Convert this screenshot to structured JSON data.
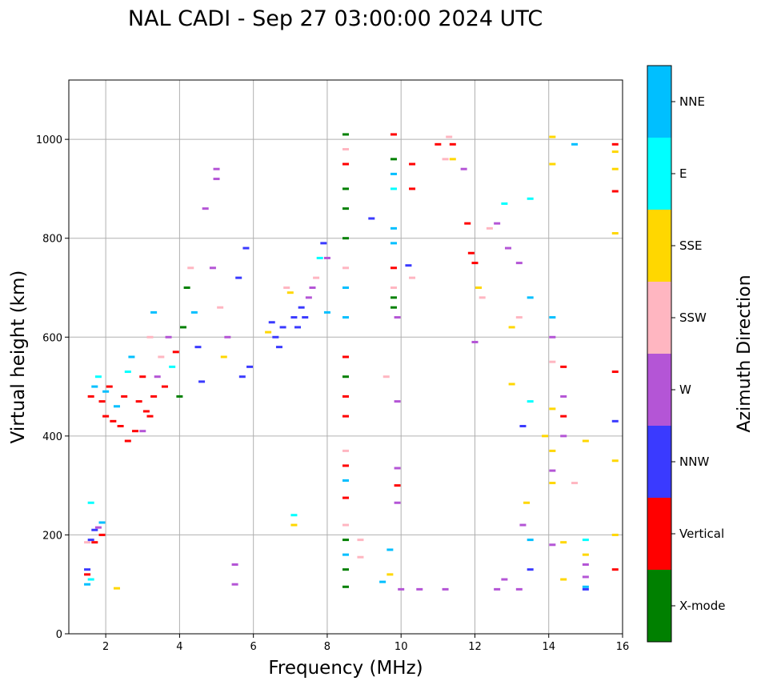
{
  "chart_data": {
    "type": "scatter",
    "title": "NAL CADI - Sep 27 03:00:00 2024 UTC",
    "xlabel": "Frequency (MHz)",
    "ylabel": "Virtual height (km)",
    "xlim": [
      1.0,
      16.0
    ],
    "ylim": [
      0,
      1120
    ],
    "x_ticks": [
      2,
      4,
      6,
      8,
      10,
      12,
      14,
      16
    ],
    "y_ticks": [
      0,
      200,
      400,
      600,
      800,
      1000
    ],
    "grid": true,
    "colorbar": {
      "title": "Azimuth Direction",
      "categories": [
        {
          "name": "X-mode",
          "color": "#008000"
        },
        {
          "name": "Vertical",
          "color": "#ff0000"
        },
        {
          "name": "NNW",
          "color": "#3a3aff"
        },
        {
          "name": "W",
          "color": "#b455d6"
        },
        {
          "name": "SSW",
          "color": "#ffb6c1"
        },
        {
          "name": "SSE",
          "color": "#ffd700"
        },
        {
          "name": "E",
          "color": "#00ffff"
        },
        {
          "name": "NNE",
          "color": "#00bfff"
        }
      ]
    },
    "points": [
      [
        1.5,
        130,
        "NNW"
      ],
      [
        1.5,
        120,
        "Vertical"
      ],
      [
        1.5,
        100,
        "NNE"
      ],
      [
        1.6,
        110,
        "E"
      ],
      [
        1.5,
        185,
        "SSW"
      ],
      [
        1.6,
        190,
        "NNW"
      ],
      [
        1.7,
        185,
        "Vertical"
      ],
      [
        1.7,
        210,
        "NNW"
      ],
      [
        1.8,
        215,
        "W"
      ],
      [
        1.9,
        225,
        "NNE"
      ],
      [
        1.9,
        200,
        "Vertical"
      ],
      [
        1.6,
        265,
        "E"
      ],
      [
        2.3,
        92,
        "SSE"
      ],
      [
        1.6,
        480,
        "Vertical"
      ],
      [
        1.7,
        500,
        "NNE"
      ],
      [
        1.8,
        520,
        "E"
      ],
      [
        1.9,
        470,
        "Vertical"
      ],
      [
        2.0,
        440,
        "Vertical"
      ],
      [
        2.0,
        490,
        "NNE"
      ],
      [
        2.1,
        500,
        "Vertical"
      ],
      [
        2.2,
        430,
        "Vertical"
      ],
      [
        2.3,
        460,
        "NNE"
      ],
      [
        2.4,
        420,
        "Vertical"
      ],
      [
        2.5,
        480,
        "Vertical"
      ],
      [
        2.6,
        390,
        "Vertical"
      ],
      [
        2.6,
        530,
        "E"
      ],
      [
        2.7,
        560,
        "NNE"
      ],
      [
        2.8,
        410,
        "Vertical"
      ],
      [
        2.9,
        470,
        "Vertical"
      ],
      [
        3.0,
        520,
        "Vertical"
      ],
      [
        3.0,
        410,
        "W"
      ],
      [
        3.1,
        450,
        "Vertical"
      ],
      [
        3.2,
        440,
        "Vertical"
      ],
      [
        3.2,
        600,
        "SSW"
      ],
      [
        3.3,
        480,
        "Vertical"
      ],
      [
        3.3,
        650,
        "NNE"
      ],
      [
        3.4,
        520,
        "W"
      ],
      [
        3.5,
        560,
        "SSW"
      ],
      [
        3.6,
        500,
        "Vertical"
      ],
      [
        3.7,
        600,
        "W"
      ],
      [
        3.8,
        540,
        "E"
      ],
      [
        3.9,
        570,
        "Vertical"
      ],
      [
        4.0,
        480,
        "X-mode"
      ],
      [
        4.1,
        620,
        "X-mode"
      ],
      [
        4.2,
        700,
        "X-mode"
      ],
      [
        4.3,
        740,
        "SSW"
      ],
      [
        4.4,
        650,
        "NNE"
      ],
      [
        4.5,
        580,
        "NNW"
      ],
      [
        4.6,
        510,
        "NNW"
      ],
      [
        4.7,
        860,
        "W"
      ],
      [
        4.9,
        740,
        "W"
      ],
      [
        5.0,
        940,
        "W"
      ],
      [
        5.0,
        920,
        "W"
      ],
      [
        5.1,
        660,
        "SSW"
      ],
      [
        5.2,
        560,
        "SSE"
      ],
      [
        5.3,
        600,
        "W"
      ],
      [
        5.5,
        140,
        "W"
      ],
      [
        5.5,
        100,
        "W"
      ],
      [
        5.6,
        720,
        "NNW"
      ],
      [
        5.7,
        520,
        "NNW"
      ],
      [
        5.8,
        780,
        "NNW"
      ],
      [
        5.9,
        540,
        "NNW"
      ],
      [
        6.4,
        610,
        "SSE"
      ],
      [
        6.5,
        630,
        "NNW"
      ],
      [
        6.6,
        600,
        "NNW"
      ],
      [
        6.7,
        580,
        "NNW"
      ],
      [
        6.8,
        620,
        "NNW"
      ],
      [
        6.9,
        700,
        "SSW"
      ],
      [
        7.0,
        690,
        "SSE"
      ],
      [
        7.1,
        640,
        "NNW"
      ],
      [
        7.2,
        620,
        "NNW"
      ],
      [
        7.3,
        660,
        "NNW"
      ],
      [
        7.4,
        640,
        "NNW"
      ],
      [
        7.5,
        680,
        "W"
      ],
      [
        7.6,
        700,
        "W"
      ],
      [
        7.7,
        720,
        "SSW"
      ],
      [
        7.8,
        760,
        "E"
      ],
      [
        7.9,
        790,
        "NNW"
      ],
      [
        8.0,
        760,
        "W"
      ],
      [
        8.0,
        650,
        "NNE"
      ],
      [
        7.1,
        240,
        "E"
      ],
      [
        7.1,
        220,
        "SSE"
      ],
      [
        8.5,
        1010,
        "X-mode"
      ],
      [
        8.5,
        980,
        "SSW"
      ],
      [
        8.5,
        950,
        "Vertical"
      ],
      [
        8.5,
        900,
        "X-mode"
      ],
      [
        8.5,
        860,
        "X-mode"
      ],
      [
        8.5,
        800,
        "X-mode"
      ],
      [
        8.5,
        740,
        "SSW"
      ],
      [
        8.5,
        700,
        "NNE"
      ],
      [
        8.5,
        640,
        "NNE"
      ],
      [
        8.5,
        560,
        "Vertical"
      ],
      [
        8.5,
        520,
        "X-mode"
      ],
      [
        8.5,
        480,
        "Vertical"
      ],
      [
        8.5,
        440,
        "Vertical"
      ],
      [
        8.5,
        370,
        "SSW"
      ],
      [
        8.5,
        340,
        "Vertical"
      ],
      [
        8.5,
        310,
        "NNE"
      ],
      [
        8.5,
        275,
        "Vertical"
      ],
      [
        8.5,
        220,
        "SSW"
      ],
      [
        8.5,
        190,
        "X-mode"
      ],
      [
        8.5,
        160,
        "NNE"
      ],
      [
        8.5,
        130,
        "X-mode"
      ],
      [
        8.5,
        95,
        "X-mode"
      ],
      [
        8.9,
        190,
        "SSW"
      ],
      [
        8.9,
        155,
        "SSW"
      ],
      [
        9.2,
        840,
        "NNW"
      ],
      [
        9.5,
        105,
        "NNE"
      ],
      [
        9.6,
        520,
        "SSW"
      ],
      [
        9.7,
        170,
        "NNE"
      ],
      [
        9.7,
        120,
        "SSE"
      ],
      [
        9.8,
        1010,
        "Vertical"
      ],
      [
        9.8,
        960,
        "X-mode"
      ],
      [
        9.8,
        930,
        "NNE"
      ],
      [
        9.8,
        900,
        "E"
      ],
      [
        9.8,
        820,
        "NNE"
      ],
      [
        9.8,
        790,
        "NNE"
      ],
      [
        9.8,
        740,
        "Vertical"
      ],
      [
        9.8,
        700,
        "SSW"
      ],
      [
        9.8,
        680,
        "X-mode"
      ],
      [
        9.8,
        660,
        "X-mode"
      ],
      [
        9.9,
        640,
        "W"
      ],
      [
        9.9,
        470,
        "W"
      ],
      [
        9.9,
        335,
        "W"
      ],
      [
        9.9,
        300,
        "Vertical"
      ],
      [
        9.9,
        265,
        "W"
      ],
      [
        10.2,
        745,
        "NNW"
      ],
      [
        10.3,
        950,
        "Vertical"
      ],
      [
        10.3,
        900,
        "Vertical"
      ],
      [
        10.3,
        720,
        "SSW"
      ],
      [
        10.0,
        90,
        "W"
      ],
      [
        10.5,
        90,
        "W"
      ],
      [
        11.2,
        90,
        "W"
      ],
      [
        11.0,
        990,
        "Vertical"
      ],
      [
        11.2,
        960,
        "SSW"
      ],
      [
        11.3,
        1005,
        "SSW"
      ],
      [
        11.4,
        990,
        "Vertical"
      ],
      [
        11.4,
        960,
        "SSE"
      ],
      [
        11.7,
        940,
        "W"
      ],
      [
        11.8,
        830,
        "Vertical"
      ],
      [
        11.9,
        770,
        "Vertical"
      ],
      [
        12.0,
        590,
        "W"
      ],
      [
        12.0,
        750,
        "Vertical"
      ],
      [
        12.1,
        700,
        "SSE"
      ],
      [
        12.2,
        680,
        "SSW"
      ],
      [
        12.4,
        820,
        "SSW"
      ],
      [
        12.6,
        830,
        "W"
      ],
      [
        12.8,
        870,
        "E"
      ],
      [
        12.9,
        780,
        "W"
      ],
      [
        13.0,
        620,
        "SSE"
      ],
      [
        13.0,
        505,
        "SSE"
      ],
      [
        13.2,
        750,
        "W"
      ],
      [
        13.2,
        640,
        "SSW"
      ],
      [
        13.3,
        420,
        "NNW"
      ],
      [
        13.3,
        220,
        "W"
      ],
      [
        13.5,
        880,
        "E"
      ],
      [
        13.5,
        680,
        "NNE"
      ],
      [
        13.5,
        470,
        "E"
      ],
      [
        13.5,
        190,
        "NNE"
      ],
      [
        13.5,
        130,
        "NNW"
      ],
      [
        13.4,
        265,
        "SSE"
      ],
      [
        12.8,
        110,
        "W"
      ],
      [
        12.6,
        90,
        "W"
      ],
      [
        13.2,
        90,
        "W"
      ],
      [
        14.1,
        1005,
        "SSE"
      ],
      [
        14.1,
        950,
        "SSE"
      ],
      [
        14.1,
        640,
        "NNE"
      ],
      [
        14.1,
        600,
        "W"
      ],
      [
        14.1,
        550,
        "SSW"
      ],
      [
        14.1,
        455,
        "SSE"
      ],
      [
        14.1,
        370,
        "SSE"
      ],
      [
        14.1,
        330,
        "W"
      ],
      [
        14.1,
        305,
        "SSE"
      ],
      [
        14.1,
        180,
        "W"
      ],
      [
        13.9,
        400,
        "SSE"
      ],
      [
        14.4,
        540,
        "Vertical"
      ],
      [
        14.4,
        480,
        "W"
      ],
      [
        14.4,
        440,
        "Vertical"
      ],
      [
        14.4,
        400,
        "W"
      ],
      [
        14.4,
        185,
        "SSE"
      ],
      [
        14.4,
        110,
        "SSE"
      ],
      [
        14.7,
        990,
        "NNE"
      ],
      [
        14.7,
        305,
        "SSW"
      ],
      [
        15.0,
        390,
        "SSE"
      ],
      [
        15.0,
        190,
        "E"
      ],
      [
        15.0,
        160,
        "SSE"
      ],
      [
        15.0,
        140,
        "W"
      ],
      [
        15.0,
        115,
        "W"
      ],
      [
        15.0,
        95,
        "NNE"
      ],
      [
        15.0,
        90,
        "NNW"
      ],
      [
        15.8,
        990,
        "Vertical"
      ],
      [
        15.8,
        975,
        "SSE"
      ],
      [
        15.8,
        940,
        "SSE"
      ],
      [
        15.8,
        895,
        "Vertical"
      ],
      [
        15.8,
        810,
        "SSE"
      ],
      [
        15.8,
        530,
        "Vertical"
      ],
      [
        15.8,
        430,
        "NNW"
      ],
      [
        15.8,
        350,
        "SSE"
      ],
      [
        15.8,
        200,
        "SSE"
      ],
      [
        15.8,
        130,
        "Vertical"
      ]
    ]
  }
}
